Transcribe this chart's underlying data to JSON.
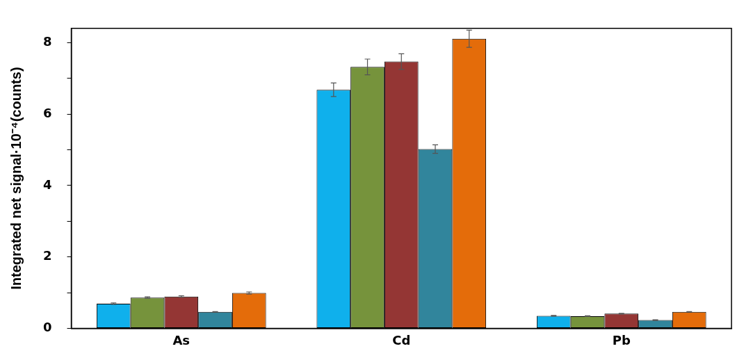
{
  "chart_data": {
    "type": "bar",
    "ylabel": "Integrated net signal·10⁻⁴(counts)",
    "categories": [
      "As",
      "Cd",
      "Pb"
    ],
    "series": [
      {
        "color": "#0fb0ec",
        "values": [
          0.69,
          6.68,
          0.35
        ],
        "errors": [
          0.02,
          0.19,
          0.01
        ]
      },
      {
        "color": "#76933c",
        "values": [
          0.86,
          7.32,
          0.34
        ],
        "errors": [
          0.02,
          0.22,
          0.01
        ]
      },
      {
        "color": "#943634",
        "values": [
          0.89,
          7.47,
          0.41
        ],
        "errors": [
          0.02,
          0.22,
          0.01
        ]
      },
      {
        "color": "#31859c",
        "values": [
          0.46,
          5.02,
          0.23
        ],
        "errors": [
          0.01,
          0.12,
          0.01
        ]
      },
      {
        "color": "#e46c0a",
        "values": [
          0.99,
          8.11,
          0.46
        ],
        "errors": [
          0.03,
          0.24,
          0.01
        ]
      }
    ],
    "ylim": [
      0,
      8.4
    ],
    "yticks": [
      0,
      {
        "value": 1,
        "label": null
      },
      2,
      {
        "value": 3,
        "label": null
      },
      4,
      {
        "value": 5,
        "label": null
      },
      6,
      {
        "value": 7,
        "label": null
      },
      8
    ],
    "grid": false,
    "legend": false
  }
}
